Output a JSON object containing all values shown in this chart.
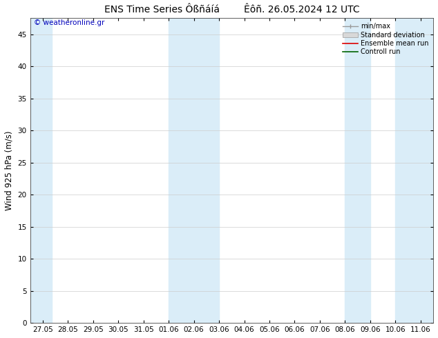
{
  "title": "ENS Time Series Ôßñáíá",
  "title2": "Êôñ. 26.05.2024 12 UTC",
  "ylabel": "Wind 925 hPa (m/s)",
  "watermark": "© weatheronline.gr",
  "ylim": [
    0,
    47.5
  ],
  "yticks": [
    0,
    5,
    10,
    15,
    20,
    25,
    30,
    35,
    40,
    45
  ],
  "x_labels": [
    "27.05",
    "28.05",
    "29.05",
    "30.05",
    "31.05",
    "01.06",
    "02.06",
    "03.06",
    "04.06",
    "05.06",
    "06.06",
    "07.06",
    "08.06",
    "09.06",
    "10.06",
    "11.06"
  ],
  "x_values": [
    0,
    1,
    2,
    3,
    4,
    5,
    6,
    7,
    8,
    9,
    10,
    11,
    12,
    13,
    14,
    15
  ],
  "xlim": [
    -0.5,
    15.5
  ],
  "shaded_bands": [
    {
      "xmin": -0.5,
      "xmax": 0.35,
      "color": "#daedf8"
    },
    {
      "xmin": 5.0,
      "xmax": 7.0,
      "color": "#daedf8"
    },
    {
      "xmin": 12.0,
      "xmax": 13.0,
      "color": "#daedf8"
    },
    {
      "xmin": 14.0,
      "xmax": 15.5,
      "color": "#daedf8"
    }
  ],
  "bg_color": "#ffffff",
  "plot_bg_color": "#ffffff",
  "grid_color": "#cccccc",
  "legend_items": [
    {
      "label": "min/max",
      "color": "#aaaaaa",
      "style": "minmax"
    },
    {
      "label": "Standard deviation",
      "color": "#cccccc",
      "style": "bar"
    },
    {
      "label": "Ensemble mean run",
      "color": "#dd0000",
      "style": "line"
    },
    {
      "label": "Controll run",
      "color": "#006400",
      "style": "line"
    }
  ],
  "title_fontsize": 10,
  "tick_fontsize": 7.5,
  "ylabel_fontsize": 8.5,
  "watermark_color": "#0000bb",
  "watermark_fontsize": 7.5,
  "legend_fontsize": 7.0
}
